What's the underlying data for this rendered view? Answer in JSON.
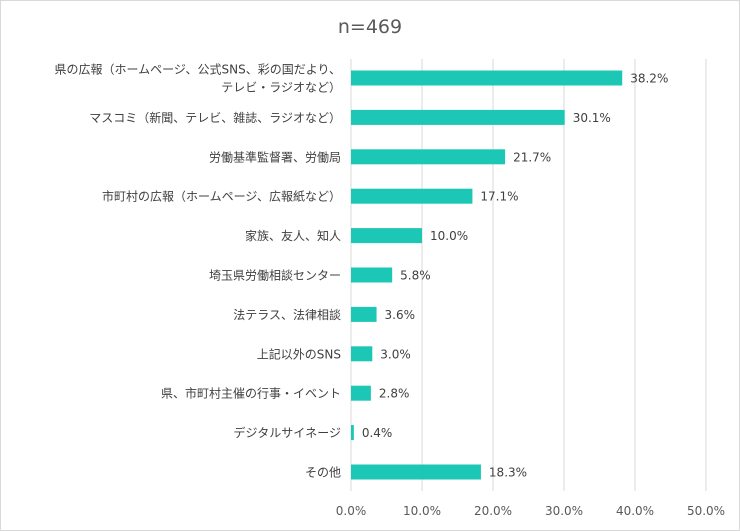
{
  "chart_data": {
    "type": "bar",
    "orientation": "horizontal",
    "title": "n=469",
    "categories": [
      [
        "県の広報（ホームページ、公式SNS、彩の国だより、",
        "テレビ・ラジオなど）"
      ],
      [
        "マスコミ（新聞、テレビ、雑誌、ラジオなど）"
      ],
      [
        "労働基準監督署、労働局"
      ],
      [
        "市町村の広報（ホームページ、広報紙など）"
      ],
      [
        "家族、友人、知人"
      ],
      [
        "埼玉県労働相談センター"
      ],
      [
        "法テラス、法律相談"
      ],
      [
        "上記以外のSNS"
      ],
      [
        "県、市町村主催の行事・イベント"
      ],
      [
        "デジタルサイネージ"
      ],
      [
        "その他"
      ]
    ],
    "values": [
      38.2,
      30.1,
      21.7,
      17.1,
      10.0,
      5.8,
      3.6,
      3.0,
      2.8,
      0.4,
      18.3
    ],
    "value_labels": [
      "38.2%",
      "30.1%",
      "21.7%",
      "17.1%",
      "10.0%",
      "5.8%",
      "3.6%",
      "3.0%",
      "2.8%",
      "0.4%",
      "18.3%"
    ],
    "xlim": [
      0,
      50
    ],
    "xticks": [
      0,
      10,
      20,
      30,
      40,
      50
    ],
    "xtick_labels": [
      "0.0%",
      "10.0%",
      "20.0%",
      "30.0%",
      "40.0%",
      "50.0%"
    ],
    "xlabel": "",
    "ylabel": "",
    "grid": "vertical",
    "legend": "none",
    "bar_color": "#1cc7b6",
    "grid_color": "#d9d9d9"
  }
}
